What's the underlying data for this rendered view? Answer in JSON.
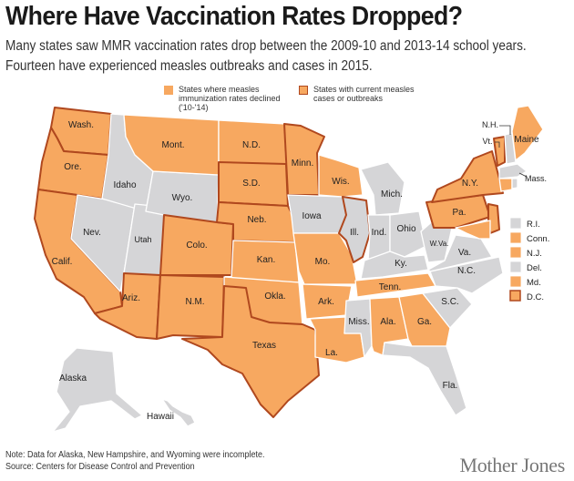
{
  "title": "Where Have Vaccination Rates Dropped?",
  "subtitle_lines": [
    "Many states saw MMR vaccination rates drop between the 2009-10 and 2013-14 school years.",
    "Fourteen have experienced measles outbreaks and cases in 2015."
  ],
  "source_line": "Sourcee: Centers for Disease Control and Prevention",
  "legend": {
    "declined": "States where measles immunization rates declined ('10-'14)",
    "outbreaks": "States with current measles cases or outbreaks"
  },
  "colors": {
    "declined": "#f7a860",
    "unchanged": "#d5d5d7",
    "outbreak_border": "#b0481e"
  },
  "state_labels": {
    "wa": "Wash.",
    "or": "Ore.",
    "ca": "Calif.",
    "nv": "Nev.",
    "id": "Idaho",
    "mt": "Mont.",
    "wy": "Wyo.",
    "ut": "Utah",
    "az": "Ariz.",
    "co": "Colo.",
    "nm": "N.M.",
    "nd": "N.D.",
    "sd": "S.D.",
    "ne": "Neb.",
    "ks": "Kan.",
    "ok": "Okla.",
    "tx": "Texas",
    "mn": "Minn.",
    "ia": "Iowa",
    "mo": "Mo.",
    "ar": "Ark.",
    "la": "La.",
    "wi": "Wis.",
    "il": "Ill.",
    "mi": "Mich.",
    "in": "Ind.",
    "oh": "Ohio",
    "ky": "Ky.",
    "tn": "Tenn.",
    "ms": "Miss.",
    "al": "Ala.",
    "ga": "Ga.",
    "fl": "Fla.",
    "sc": "S.C.",
    "nc": "N.C.",
    "va": "Va.",
    "wv": "W.Va.",
    "pa": "Pa.",
    "ny": "N.Y.",
    "vt": "Vt.",
    "nh": "N.H.",
    "me": "Maine",
    "ma": "Mass.",
    "ak": "Alaska",
    "hi": "Hawaii"
  },
  "small_states_key": [
    "R.I.",
    "Conn.",
    "N.J.",
    "Del.",
    "Md.",
    "D.C."
  ],
  "notes": [
    "Note: Data for Alaska, New Hampshire, and Wyoming were incomplete.",
    "Source: Centers for Disease Control and Prevention"
  ],
  "logo": "Mother Jones"
}
